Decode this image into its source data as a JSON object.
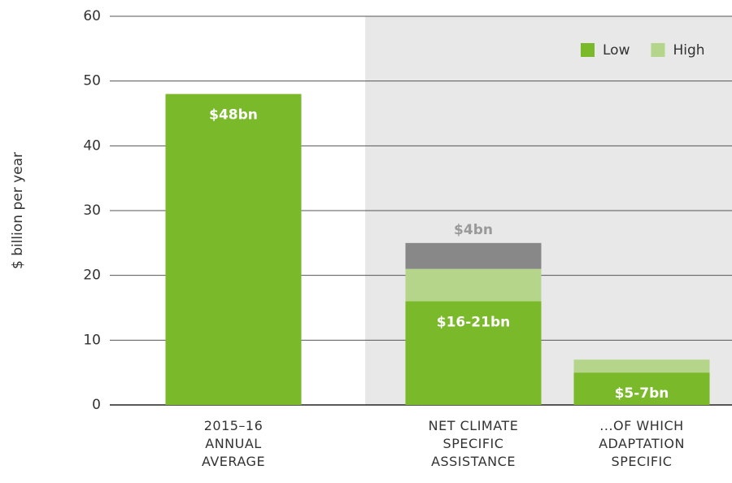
{
  "chart_data": {
    "type": "stacked-bar",
    "y_label": "$ billion per year",
    "categories": [
      "2015–16\nANNUAL\nAVERAGE",
      "NET CLIMATE\nSPECIFIC\nASSISTANCE",
      "...OF WHICH\nADAPTATION\nSPECIFIC"
    ],
    "series": [
      {
        "name": "Low",
        "color": "#7ab929",
        "values": [
          48,
          16,
          5
        ],
        "value_labels": [
          "$48bn",
          "$16-21bn",
          "$5-7bn"
        ]
      },
      {
        "name": "High",
        "color": "#b5d68a",
        "values": [
          null,
          5,
          2
        ]
      },
      {
        "color": "#888888",
        "values": [
          null,
          4,
          null
        ],
        "value_labels": [
          null,
          "$4bn",
          null
        ]
      }
    ],
    "ylim": [
      0,
      60
    ],
    "yticks": [
      0,
      10,
      20,
      30,
      40,
      50,
      60
    ],
    "grid": true,
    "legend": "top-right"
  }
}
